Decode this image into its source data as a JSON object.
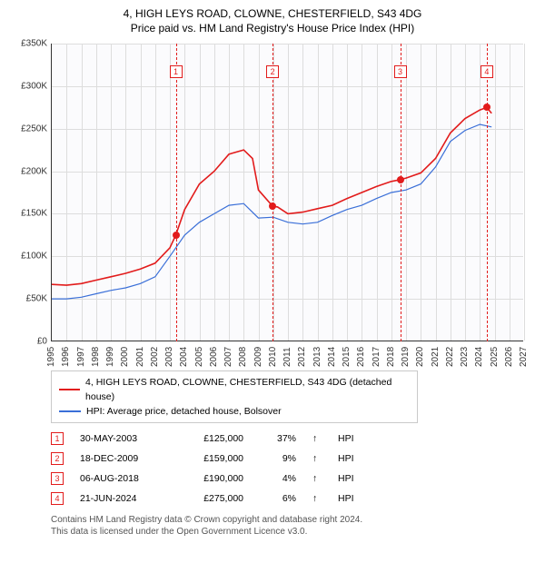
{
  "title": "4, HIGH LEYS ROAD, CLOWNE, CHESTERFIELD, S43 4DG",
  "subtitle": "Price paid vs. HM Land Registry's House Price Index (HPI)",
  "chart": {
    "type": "line",
    "background_color": "#fbfbfd",
    "grid_color": "#dddddd",
    "axis_color": "#333333",
    "x_min": 1995,
    "x_max": 2027,
    "y_min": 0,
    "y_max": 350000,
    "y_ticks": [
      {
        "v": 0,
        "label": "£0"
      },
      {
        "v": 50000,
        "label": "£50K"
      },
      {
        "v": 100000,
        "label": "£100K"
      },
      {
        "v": 150000,
        "label": "£150K"
      },
      {
        "v": 200000,
        "label": "£200K"
      },
      {
        "v": 250000,
        "label": "£250K"
      },
      {
        "v": 300000,
        "label": "£300K"
      },
      {
        "v": 350000,
        "label": "£350K"
      }
    ],
    "x_ticks": [
      "1995",
      "1996",
      "1997",
      "1998",
      "1999",
      "2000",
      "2001",
      "2002",
      "2003",
      "2004",
      "2005",
      "2006",
      "2007",
      "2008",
      "2009",
      "2010",
      "2011",
      "2012",
      "2013",
      "2014",
      "2015",
      "2016",
      "2017",
      "2018",
      "2019",
      "2020",
      "2021",
      "2022",
      "2023",
      "2024",
      "2025",
      "2026",
      "2027"
    ],
    "series": [
      {
        "name": "4, HIGH LEYS ROAD, CLOWNE, CHESTERFIELD, S43 4DG (detached house)",
        "color": "#e21b1b",
        "line_width": 1.6,
        "points": [
          [
            1995,
            67000
          ],
          [
            1996,
            66000
          ],
          [
            1997,
            68000
          ],
          [
            1998,
            72000
          ],
          [
            1999,
            76000
          ],
          [
            2000,
            80000
          ],
          [
            2001,
            85000
          ],
          [
            2002,
            92000
          ],
          [
            2003,
            110000
          ],
          [
            2003.4,
            125000
          ],
          [
            2004,
            155000
          ],
          [
            2005,
            185000
          ],
          [
            2006,
            200000
          ],
          [
            2007,
            220000
          ],
          [
            2008,
            225000
          ],
          [
            2008.6,
            215000
          ],
          [
            2009,
            178000
          ],
          [
            2009.96,
            159000
          ],
          [
            2010.3,
            158000
          ],
          [
            2011,
            150000
          ],
          [
            2012,
            152000
          ],
          [
            2013,
            156000
          ],
          [
            2014,
            160000
          ],
          [
            2015,
            168000
          ],
          [
            2016,
            175000
          ],
          [
            2017,
            182000
          ],
          [
            2018,
            188000
          ],
          [
            2018.6,
            190000
          ],
          [
            2019,
            192000
          ],
          [
            2020,
            198000
          ],
          [
            2021,
            215000
          ],
          [
            2022,
            245000
          ],
          [
            2023,
            262000
          ],
          [
            2024,
            272000
          ],
          [
            2024.47,
            275000
          ],
          [
            2024.8,
            268000
          ]
        ]
      },
      {
        "name": "HPI: Average price, detached house, Bolsover",
        "color": "#3a6fd8",
        "line_width": 1.2,
        "points": [
          [
            1995,
            50000
          ],
          [
            1996,
            50000
          ],
          [
            1997,
            52000
          ],
          [
            1998,
            56000
          ],
          [
            1999,
            60000
          ],
          [
            2000,
            63000
          ],
          [
            2001,
            68000
          ],
          [
            2002,
            76000
          ],
          [
            2003,
            100000
          ],
          [
            2004,
            125000
          ],
          [
            2005,
            140000
          ],
          [
            2006,
            150000
          ],
          [
            2007,
            160000
          ],
          [
            2008,
            162000
          ],
          [
            2009,
            145000
          ],
          [
            2010,
            146000
          ],
          [
            2011,
            140000
          ],
          [
            2012,
            138000
          ],
          [
            2013,
            140000
          ],
          [
            2014,
            148000
          ],
          [
            2015,
            155000
          ],
          [
            2016,
            160000
          ],
          [
            2017,
            168000
          ],
          [
            2018,
            175000
          ],
          [
            2019,
            178000
          ],
          [
            2020,
            185000
          ],
          [
            2021,
            205000
          ],
          [
            2022,
            235000
          ],
          [
            2023,
            248000
          ],
          [
            2024,
            255000
          ],
          [
            2024.8,
            252000
          ]
        ]
      }
    ],
    "markers": [
      {
        "n": "1",
        "x": 2003.4,
        "y": 125000,
        "color": "#e21b1b"
      },
      {
        "n": "2",
        "x": 2009.96,
        "y": 159000,
        "color": "#e21b1b"
      },
      {
        "n": "3",
        "x": 2018.6,
        "y": 190000,
        "color": "#e21b1b"
      },
      {
        "n": "4",
        "x": 2024.47,
        "y": 275000,
        "color": "#e21b1b"
      }
    ]
  },
  "legend": [
    {
      "color": "#e21b1b",
      "label": "4, HIGH LEYS ROAD, CLOWNE, CHESTERFIELD, S43 4DG (detached house)"
    },
    {
      "color": "#3a6fd8",
      "label": "HPI: Average price, detached house, Bolsover"
    }
  ],
  "transactions": [
    {
      "n": "1",
      "color": "#e21b1b",
      "date": "30-MAY-2003",
      "price": "£125,000",
      "pct": "37%",
      "arrow": "↑",
      "ref": "HPI"
    },
    {
      "n": "2",
      "color": "#e21b1b",
      "date": "18-DEC-2009",
      "price": "£159,000",
      "pct": "9%",
      "arrow": "↑",
      "ref": "HPI"
    },
    {
      "n": "3",
      "color": "#e21b1b",
      "date": "06-AUG-2018",
      "price": "£190,000",
      "pct": "4%",
      "arrow": "↑",
      "ref": "HPI"
    },
    {
      "n": "4",
      "color": "#e21b1b",
      "date": "21-JUN-2024",
      "price": "£275,000",
      "pct": "6%",
      "arrow": "↑",
      "ref": "HPI"
    }
  ],
  "footer_line1": "Contains HM Land Registry data © Crown copyright and database right 2024.",
  "footer_line2": "This data is licensed under the Open Government Licence v3.0."
}
